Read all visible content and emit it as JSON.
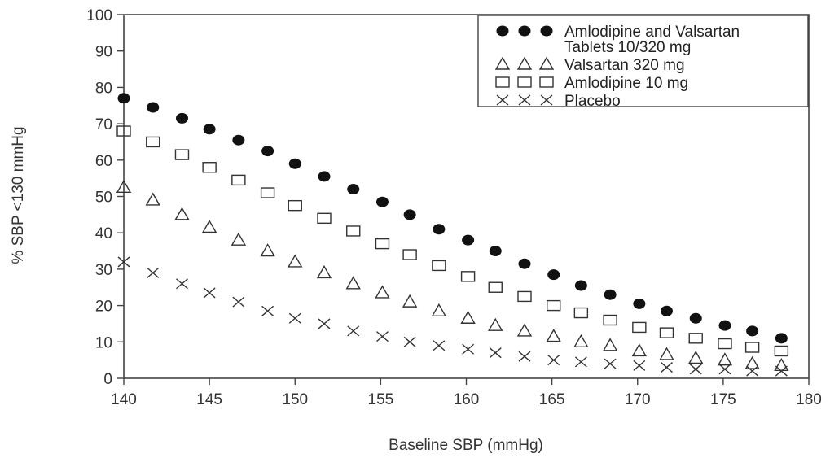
{
  "chart_data": {
    "type": "scatter",
    "title": "",
    "xlabel": "Baseline SBP (mmHg)",
    "ylabel": "% SBP <130 mmHg",
    "xlim": [
      140,
      180
    ],
    "ylim": [
      0,
      100
    ],
    "xticks": [
      140,
      145,
      150,
      155,
      160,
      165,
      170,
      175,
      180
    ],
    "yticks": [
      0,
      10,
      20,
      30,
      40,
      50,
      60,
      70,
      80,
      90,
      100
    ],
    "grid": false,
    "legend_position": "top-right",
    "x": [
      140,
      141.7,
      143.4,
      145,
      146.7,
      148.4,
      150,
      151.7,
      153.4,
      155.1,
      156.7,
      158.4,
      160.1,
      161.7,
      163.4,
      165.1,
      166.7,
      168.4,
      170.1,
      171.7,
      173.4,
      175.1,
      176.7,
      178.4
    ],
    "series": [
      {
        "name": "Amlodipine and Valsartan Tablets  10/320 mg",
        "legend_lines": [
          "Amlodipine and Valsartan",
          "Tablets  10/320 mg"
        ],
        "marker": "filled-circle",
        "values": [
          77,
          74.5,
          71.5,
          68.5,
          65.5,
          62.5,
          59,
          55.5,
          52,
          48.5,
          45,
          41,
          38,
          35,
          31.5,
          28.5,
          25.5,
          23,
          20.5,
          18.5,
          16.5,
          14.5,
          13,
          11
        ]
      },
      {
        "name": "Valsartan 320 mg",
        "legend_lines": [
          "Valsartan 320 mg"
        ],
        "marker": "open-triangle",
        "values": [
          52.5,
          49,
          45,
          41.5,
          38,
          35,
          32,
          29,
          26,
          23.5,
          21,
          18.5,
          16.5,
          14.5,
          13,
          11.5,
          10,
          9,
          7.5,
          6.5,
          5.5,
          5,
          4,
          3.5
        ]
      },
      {
        "name": "Amlodipine 10 mg",
        "legend_lines": [
          "Amlodipine 10 mg"
        ],
        "marker": "open-square",
        "values": [
          68,
          65,
          61.5,
          58,
          54.5,
          51,
          47.5,
          44,
          40.5,
          37,
          34,
          31,
          28,
          25,
          22.5,
          20,
          18,
          16,
          14,
          12.5,
          11,
          9.5,
          8.5,
          7.5
        ]
      },
      {
        "name": "Placebo",
        "legend_lines": [
          "Placebo"
        ],
        "marker": "x-cross",
        "values": [
          32,
          29,
          26,
          23.5,
          21,
          18.5,
          16.5,
          15,
          13,
          11.5,
          10,
          9,
          8,
          7,
          6,
          5,
          4.5,
          4,
          3.5,
          3,
          2.5,
          2.5,
          2,
          2
        ]
      }
    ]
  }
}
